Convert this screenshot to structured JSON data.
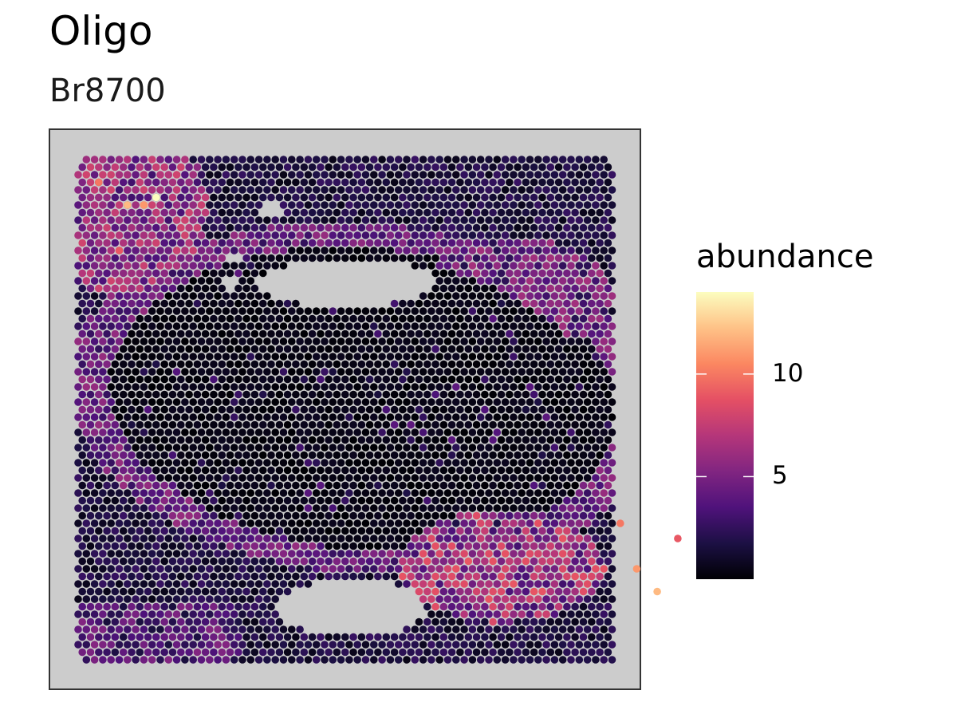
{
  "chart_data": {
    "type": "spatial-scatter",
    "title": "Oligo",
    "subtitle": "Br8700",
    "legend": {
      "title": "abundance",
      "ticks": [
        5,
        10
      ],
      "tick_labels": [
        "5",
        "10"
      ],
      "range": [
        0,
        14
      ],
      "placement": "right"
    },
    "colormap": {
      "name": "magma",
      "stops": [
        "#000004",
        "#1c1044",
        "#4f127b",
        "#812581",
        "#b5367a",
        "#e55064",
        "#fb8761",
        "#fec287",
        "#fcfdbf"
      ]
    },
    "background_color": "#cccccc",
    "grid": false,
    "hotspots": [
      {
        "x": 9,
        "y": 5,
        "value": 14
      },
      {
        "x": 6,
        "y": 6,
        "value": 12
      },
      {
        "x": 8,
        "y": 6,
        "value": 11
      },
      {
        "x": 2,
        "y": 3,
        "value": 10
      },
      {
        "x": 5,
        "y": 12,
        "value": 9
      },
      {
        "x": 70,
        "y": 57,
        "value": 12
      },
      {
        "x": 68,
        "y": 54,
        "value": 11
      },
      {
        "x": 66,
        "y": 48,
        "value": 10
      },
      {
        "x": 73,
        "y": 50,
        "value": 9
      }
    ]
  }
}
